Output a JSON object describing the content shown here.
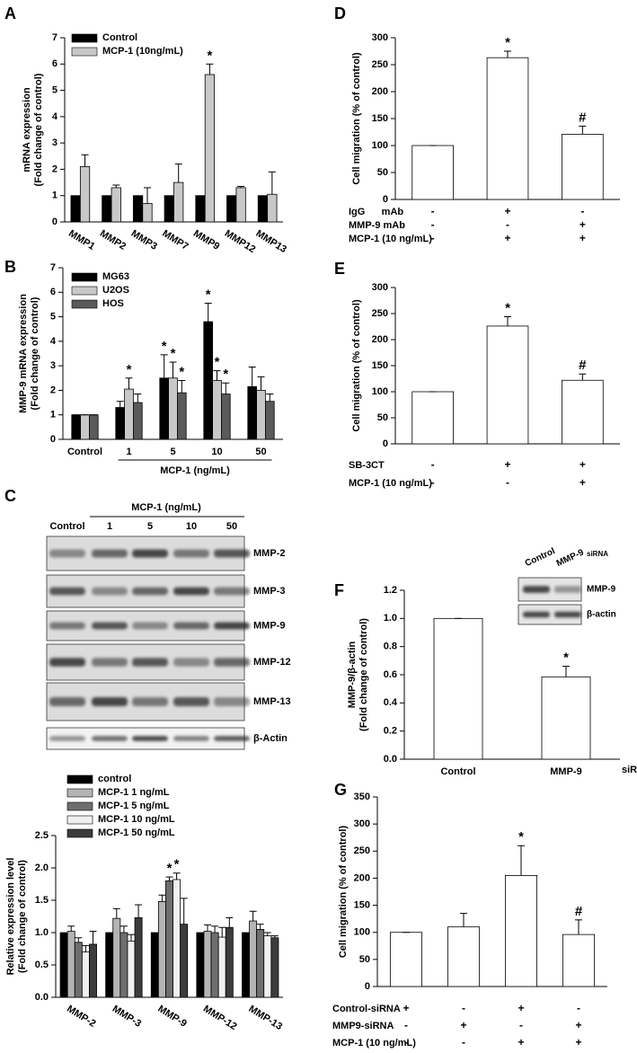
{
  "chart_data": [
    {
      "type": "bar",
      "panel": "A",
      "ylabel": [
        "mRNA expression",
        "(Fold change of control)"
      ],
      "categories": [
        "MMP1",
        "MMP2",
        "MMP3",
        "MMP7",
        "MMP9",
        "MMP12",
        "MMP13"
      ],
      "series": [
        {
          "name": "Control",
          "color": "#000000",
          "values": [
            1,
            1,
            1,
            1,
            1,
            1,
            1
          ]
        },
        {
          "name": "MCP-1 (10ng/mL)",
          "color": "#c8c8c8",
          "values": [
            2.1,
            1.3,
            0.7,
            1.5,
            5.6,
            1.3,
            1.05
          ],
          "errors": [
            0.45,
            0.1,
            0.6,
            0.7,
            0.4,
            0.05,
            0.85
          ],
          "significance": [
            null,
            null,
            null,
            null,
            "*",
            null,
            null
          ]
        }
      ],
      "ylim": [
        0,
        7
      ],
      "yticks": [
        0,
        1,
        2,
        3,
        4,
        5,
        6,
        7
      ]
    },
    {
      "type": "bar",
      "panel": "B",
      "ylabel": [
        "MMP-9 mRNA expression",
        "(Fold change of control)"
      ],
      "categories": [
        "Control",
        "1",
        "5",
        "10",
        "50"
      ],
      "xlabel": "MCP-1 (ng/mL)",
      "series": [
        {
          "name": "MG63",
          "color": "#000000",
          "values": [
            1,
            1.3,
            2.5,
            4.8,
            2.15
          ],
          "errors": [
            0,
            0.25,
            0.95,
            0.75,
            0.8
          ],
          "significance": [
            null,
            null,
            "*",
            "*",
            null
          ]
        },
        {
          "name": "U2OS",
          "color": "#c8c8c8",
          "values": [
            1,
            2.05,
            2.5,
            2.4,
            2.0
          ],
          "errors": [
            0,
            0.45,
            0.65,
            0.4,
            0.55
          ],
          "significance": [
            null,
            "*",
            "*",
            "*",
            null
          ]
        },
        {
          "name": "HOS",
          "color": "#5a5a5a",
          "values": [
            1,
            1.5,
            1.9,
            1.85,
            1.55
          ],
          "errors": [
            0,
            0.35,
            0.5,
            0.45,
            0.3
          ],
          "significance": [
            null,
            null,
            "*",
            "*",
            null
          ]
        }
      ],
      "ylim": [
        0,
        7
      ],
      "yticks": [
        0,
        1,
        2,
        3,
        4,
        5,
        6,
        7
      ]
    },
    {
      "type": "blot",
      "panel": "C",
      "header": "MCP-1 (ng/mL)",
      "lanes": [
        "Control",
        "1",
        "5",
        "10",
        "50"
      ],
      "rows": [
        "MMP-2",
        "MMP-3",
        "MMP-9",
        "MMP-12",
        "MMP-13",
        "β-Actin"
      ]
    },
    {
      "type": "bar",
      "ylabel": [
        "Relative expression level",
        "(Fold change of control)"
      ],
      "categories": [
        "MMP-2",
        "MMP-3",
        "MMP-9",
        "MMP-12",
        "MMP-13"
      ],
      "series": [
        {
          "name": "control",
          "color": "#000000",
          "values": [
            1,
            1,
            1,
            1,
            1
          ]
        },
        {
          "name": "MCP-1 1 ng/mL",
          "color": "#b4b4b4",
          "values": [
            1.02,
            1.22,
            1.48,
            1.02,
            1.18
          ],
          "errors": [
            0.08,
            0.15,
            0.1,
            0.1,
            0.15
          ]
        },
        {
          "name": "MCP-1 5 ng/mL",
          "color": "#6e6e6e",
          "values": [
            0.85,
            1.0,
            1.8,
            1.0,
            1.05
          ],
          "errors": [
            0.07,
            0.1,
            0.06,
            0.1,
            0.08
          ],
          "significance": [
            null,
            null,
            "*",
            null,
            null
          ]
        },
        {
          "name": "MCP-1 10 ng/mL",
          "color": "#f0f0f0",
          "values": [
            0.7,
            0.87,
            1.82,
            0.93,
            0.95
          ],
          "errors": [
            0.1,
            0.1,
            0.1,
            0.15,
            0.05
          ],
          "significance": [
            null,
            null,
            "*",
            null,
            null
          ]
        },
        {
          "name": "MCP-1 50 ng/mL",
          "color": "#3c3c3c",
          "values": [
            0.82,
            1.23,
            1.13,
            1.08,
            0.92
          ],
          "errors": [
            0.2,
            0.2,
            0.4,
            0.15,
            0.03
          ]
        }
      ],
      "ylim": [
        0,
        2.5
      ],
      "yticks": [
        {
          "value": 0,
          "label": "0.0"
        },
        0.5,
        {
          "value": 1,
          "label": "1.0"
        },
        1.5,
        {
          "value": 2,
          "label": "2.0"
        },
        2.5
      ]
    },
    {
      "type": "bar",
      "panel": "D",
      "ylabel": [
        "Cell migration (% of control)"
      ],
      "categories": [
        null,
        null,
        null
      ],
      "color": "#ffffff",
      "values": [
        100,
        263,
        121
      ],
      "errors": [
        0,
        12,
        15
      ],
      "significance": [
        null,
        "*",
        "#"
      ],
      "treatments": [
        {
          "name": "IgG      mAb",
          "marks": [
            "-",
            "+",
            "-"
          ]
        },
        {
          "name": "MMP-9 mAb",
          "marks": [
            "-",
            "-",
            "+"
          ]
        },
        {
          "name": "MCP-1 (10 ng/mL)",
          "marks": [
            "-",
            "+",
            "+"
          ]
        }
      ],
      "ylim": [
        0,
        300
      ],
      "yticks": [
        0,
        50,
        100,
        150,
        200,
        250,
        300
      ]
    },
    {
      "type": "bar",
      "panel": "E",
      "ylabel": [
        "Cell migration (% of control)"
      ],
      "categories": [
        null,
        null,
        null
      ],
      "color": "#ffffff",
      "values": [
        100,
        226,
        122
      ],
      "errors": [
        0,
        18,
        12
      ],
      "significance": [
        null,
        "*",
        "#"
      ],
      "treatments": [
        {
          "name": "SB-3CT",
          "marks": [
            "-",
            "+",
            "+"
          ]
        },
        {
          "name": "MCP-1 (10 ng/mL)",
          "marks": [
            "-",
            "-",
            "+"
          ]
        }
      ],
      "ylim": [
        0,
        300
      ],
      "yticks": [
        0,
        50,
        100,
        150,
        200,
        250,
        300
      ]
    },
    {
      "type": "bar",
      "panel": "F",
      "ylabel": [
        "MMP-9/β-actin",
        "(Fold change of control)"
      ],
      "categories": [
        "Control",
        "MMP-9"
      ],
      "x_suffix": "siRNA",
      "color": "#ffffff",
      "values": [
        1.0,
        0.585
      ],
      "errors": [
        0,
        0.075
      ],
      "significance": [
        null,
        "*"
      ],
      "ylim": [
        0,
        1.2
      ],
      "yticks": [
        {
          "value": 0,
          "label": "0.0"
        },
        0.2,
        0.4,
        0.6,
        0.8,
        {
          "value": 1,
          "label": "1.0"
        },
        1.2
      ],
      "inset_blot": {
        "lanes": [
          "Control",
          "MMP-9"
        ],
        "lane_note": "siRNA",
        "rows": [
          "MMP-9",
          "β-actin"
        ]
      }
    },
    {
      "type": "bar",
      "panel": "G",
      "ylabel": [
        "Cell migration (% of control)"
      ],
      "categories": [
        null,
        null,
        null,
        null
      ],
      "color": "#ffffff",
      "values": [
        100,
        110,
        205,
        96
      ],
      "errors": [
        0,
        25,
        55,
        27
      ],
      "significance": [
        null,
        null,
        "*",
        "#"
      ],
      "treatments": [
        {
          "name": "Control-siRNA",
          "marks": [
            "+",
            "-",
            "+",
            "-"
          ]
        },
        {
          "name": "MMP9-siRNA",
          "marks": [
            "-",
            "+",
            "-",
            "+"
          ]
        },
        {
          "name": "MCP-1 (10 ng/mL)",
          "marks": [
            "-",
            "-",
            "+",
            "+"
          ]
        }
      ],
      "ylim": [
        0,
        350
      ],
      "yticks": [
        0,
        50,
        100,
        150,
        200,
        250,
        300,
        350
      ]
    }
  ]
}
